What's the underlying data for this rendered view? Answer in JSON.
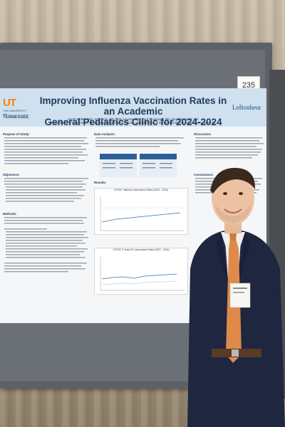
{
  "poster": {
    "number": "235",
    "title_line1": "Improving Influenza Vaccination Rates in an Academic",
    "title_line2": "General Pediatrics Clinic for 2024-2024",
    "authors": "Jacob Mullins, MD, Joe Harris, MD, Leila Amaner, MD, Jared Neumanek, MD, and Jason Park, MD",
    "affiliation": "Pediatrics, The University of Tennessee Health Science Center, Memphis, TN, Le Bonheur Children's Hospital, Memphis, TN",
    "ut_mark": "UT",
    "ut_name_line1": "THE UNIVERSITY OF",
    "ut_name_line2": "TENNESSEE",
    "lebonheur": "LeBonheur",
    "sections": {
      "purpose": "Purpose of Study:",
      "objectives": "Objectives:",
      "methods": "Methods:",
      "data_analysis": "Data Analysis:",
      "results": "Results:",
      "discussion": "Discussion:",
      "conclusions": "Conclusions:"
    },
    "chart1_title": "UTHSC Influenza Vaccination Rates (2023 - 2024)",
    "chart2_title": "UTHSC 3 Years Flu Vaccination Rates (2022 - 2024)"
  },
  "colors": {
    "header_bg": "#cfe0ef",
    "title": "#1f3a5a",
    "ut_orange": "#ff8200",
    "tie": "#e08a4a",
    "suit": "#1f2740"
  }
}
